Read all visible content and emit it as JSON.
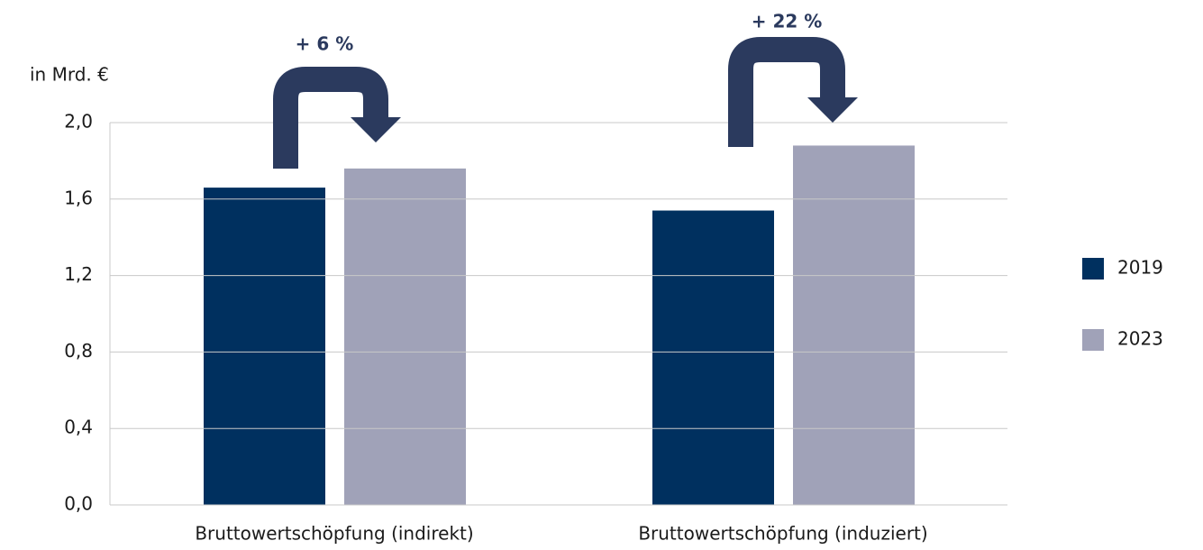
{
  "chart_data": {
    "type": "bar",
    "y_label": "in Mrd. €",
    "categories": [
      "Bruttowertschöpfung (indirekt)",
      "Bruttowertschöpfung (induziert)"
    ],
    "series": [
      {
        "name": "2019",
        "color": "#00305f",
        "values": [
          1.66,
          1.54
        ]
      },
      {
        "name": "2023",
        "color": "#a0a2b8",
        "values": [
          1.76,
          1.88
        ]
      }
    ],
    "annotations": [
      "+ 6 %",
      "+ 22 %"
    ],
    "ylim": [
      0,
      2
    ],
    "yticks": [
      {
        "value": 0,
        "label": "0,0"
      },
      {
        "value": 0.4,
        "label": "0,4"
      },
      {
        "value": 0.8,
        "label": "0,8"
      },
      {
        "value": 1.2,
        "label": "1,2"
      },
      {
        "value": 1.6,
        "label": "1,6"
      },
      {
        "value": 2,
        "label": "2,0"
      }
    ],
    "grid": true,
    "legend": "right"
  }
}
